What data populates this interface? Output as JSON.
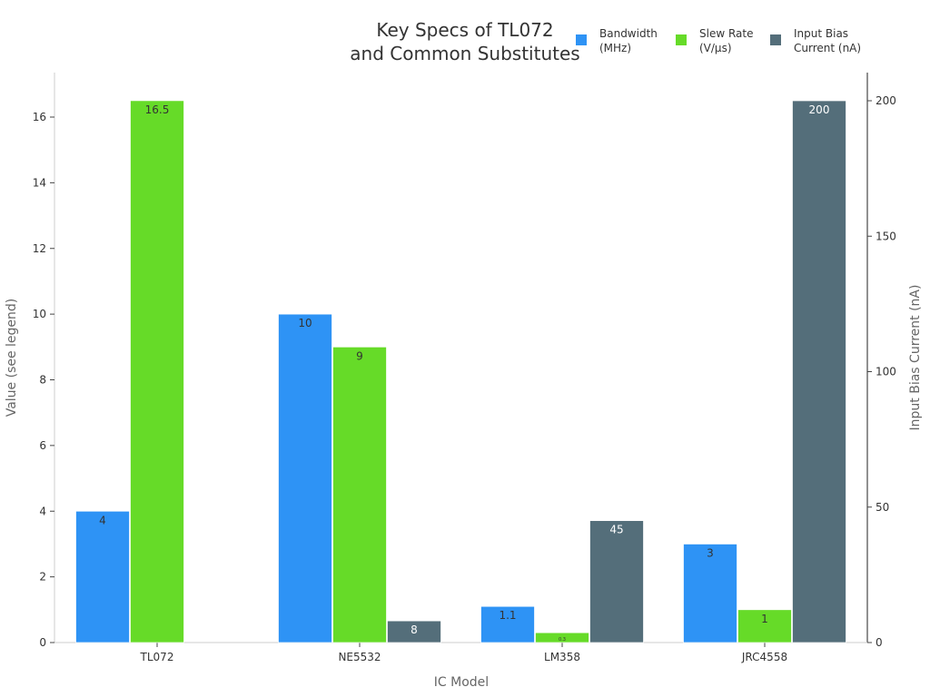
{
  "chart_data": {
    "type": "bar",
    "title": [
      "Key Specs of TL072",
      "and Common Substitutes"
    ],
    "xlabel": "IC Model",
    "ylabel": "Value (see legend)",
    "y2label": "Input Bias Current (nA)",
    "categories": [
      "TL072",
      "NE5532",
      "LM358",
      "JRC4558"
    ],
    "ylim": [
      0,
      17.4
    ],
    "y2lim": [
      0,
      209
    ],
    "yticks": [
      0,
      2,
      4,
      6,
      8,
      10,
      12,
      14,
      16
    ],
    "y2ticks": [
      0,
      50,
      100,
      150,
      200
    ],
    "legend_position": "top-right",
    "series": [
      {
        "name": "Bandwidth (MHz)",
        "legend": [
          "Bandwidth",
          "(MHz)"
        ],
        "axis": "left",
        "color": "#2e93f5",
        "label_color": "#333333",
        "values": [
          4,
          10,
          1.1,
          3
        ],
        "labels": [
          "4",
          "10",
          "1.1",
          "3"
        ]
      },
      {
        "name": "Slew Rate (V/µs)",
        "legend": [
          "Slew Rate",
          "(V/µs)"
        ],
        "axis": "left",
        "color": "#66db28",
        "label_color": "#333333",
        "values": [
          16.5,
          9,
          0.3,
          1
        ],
        "labels": [
          "16.5",
          "9",
          "0.3",
          "1"
        ]
      },
      {
        "name": "Input Bias Current (nA)",
        "legend": [
          "Input Bias",
          "Current (nA)"
        ],
        "axis": "right",
        "color": "#546e7a",
        "label_color": "#ffffff",
        "values": [
          null,
          8,
          45,
          200
        ],
        "labels": [
          "",
          "8",
          "45",
          "200"
        ]
      }
    ]
  }
}
